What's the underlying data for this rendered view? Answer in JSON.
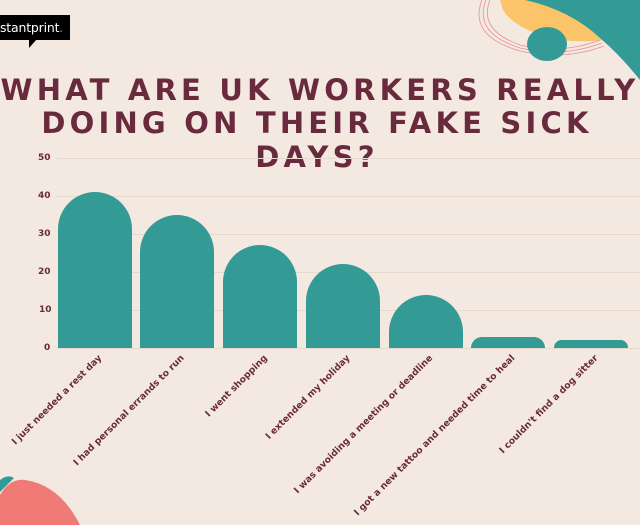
{
  "brand": {
    "logo_text": "stantprint",
    "logo_dot": ".",
    "accent_color": "#e0516e"
  },
  "colors": {
    "background": "#f3e9e0",
    "title": "#6a2a3d",
    "bar": "#339a95",
    "decor_yellow": "#fcc468",
    "decor_teal": "#339a95",
    "decor_coral": "#f07a76"
  },
  "header": {
    "title_line1": "WHAT ARE UK WORKERS REALLY",
    "title_line2": "DOING ON THEIR FAKE SICK DAYS?"
  },
  "axis": {
    "y_ticks": [
      "50",
      "40",
      "30",
      "20",
      "10",
      "0"
    ]
  },
  "labels": [
    "I just needed a rest day",
    "I had personal errands to run",
    "I went shopping",
    "I extended my holiday",
    "I was avoiding a meeting or deadline",
    "I got a new tattoo and needed time to heal",
    "I couldn't find a dog sitter"
  ],
  "chart_data": {
    "type": "bar",
    "title": "What are UK workers really doing on their fake sick days?",
    "categories": [
      "I just needed a rest day",
      "I had personal errands to run",
      "I went shopping",
      "I extended my holiday",
      "I was avoiding a meeting or deadline",
      "I got a new tattoo and needed time to heal",
      "I couldn't find a dog sitter"
    ],
    "values": [
      41,
      35,
      27,
      22,
      14,
      3,
      2
    ],
    "xlabel": "",
    "ylabel": "",
    "ylim": [
      0,
      50
    ],
    "y_ticks": [
      0,
      10,
      20,
      30,
      40,
      50
    ],
    "grid": true,
    "legend": null,
    "bar_color": "#339a95"
  }
}
